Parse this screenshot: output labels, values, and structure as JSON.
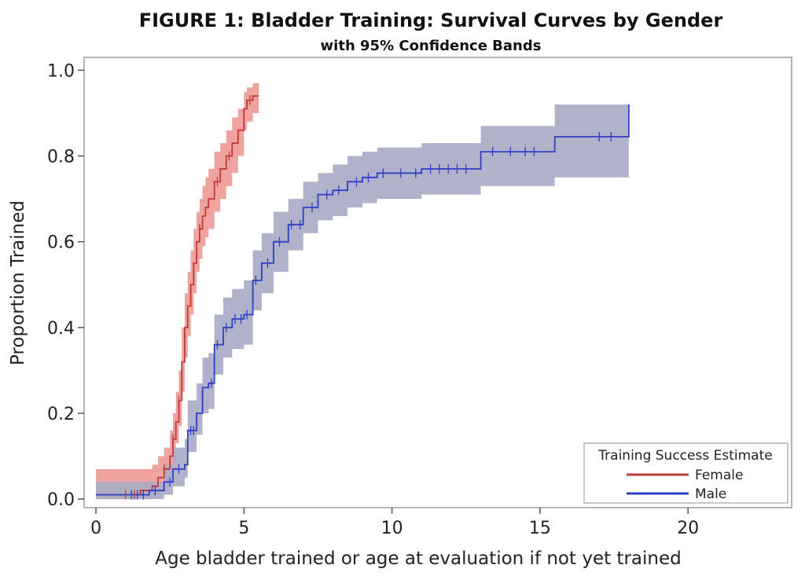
{
  "title_prefix": "FIGURE 1:",
  "title_rest": " Bladder Training: Survival Curves by Gender",
  "subtitle": "with 95% Confidence Bands",
  "colors": {
    "female_line": "#c0393b",
    "female_band": "#ec8f8a",
    "male_line": "#2f3fc4",
    "male_band": "#a8abc6",
    "frame": "#b4b4b4"
  },
  "chart_data": {
    "type": "line",
    "step": true,
    "title": "FIGURE 1: Bladder Training: Survival Curves by Gender",
    "subtitle": "with 95% Confidence Bands",
    "xlabel": "Age bladder trained or age at evaluation if not yet trained",
    "ylabel": "Proportion Trained",
    "xlim": [
      -0.4,
      23.5
    ],
    "ylim": [
      -0.02,
      1.03
    ],
    "x_ticks": [
      0,
      5,
      10,
      15,
      20
    ],
    "x_tick_labels": [
      "0",
      "5",
      "10",
      "15",
      "20"
    ],
    "y_ticks": [
      0.0,
      0.2,
      0.4,
      0.6,
      0.8,
      1.0
    ],
    "y_tick_labels": [
      "0.0",
      "0.2",
      "0.4",
      "0.6",
      "0.8",
      "1.0"
    ],
    "grid": false,
    "legend": {
      "title": "Training Success Estimate",
      "position": "bottom-right"
    },
    "series": [
      {
        "name": "Female",
        "color": "#c0393b",
        "band_color": "#ec8f8a",
        "x": [
          0,
          1.5,
          1.9,
          2.1,
          2.3,
          2.5,
          2.6,
          2.7,
          2.8,
          2.9,
          3.0,
          3.1,
          3.2,
          3.3,
          3.4,
          3.5,
          3.6,
          3.7,
          3.8,
          4.0,
          4.2,
          4.4,
          4.6,
          4.8,
          5.0,
          5.1,
          5.3,
          5.5
        ],
        "y": [
          0.01,
          0.02,
          0.03,
          0.05,
          0.07,
          0.1,
          0.14,
          0.18,
          0.23,
          0.32,
          0.4,
          0.45,
          0.5,
          0.55,
          0.6,
          0.63,
          0.66,
          0.68,
          0.7,
          0.74,
          0.77,
          0.8,
          0.83,
          0.86,
          0.91,
          0.93,
          0.94,
          0.94
        ],
        "lower": [
          0.0,
          0.0,
          0.01,
          0.02,
          0.04,
          0.06,
          0.09,
          0.13,
          0.17,
          0.25,
          0.33,
          0.38,
          0.43,
          0.48,
          0.53,
          0.56,
          0.59,
          0.61,
          0.63,
          0.67,
          0.7,
          0.73,
          0.76,
          0.8,
          0.86,
          0.88,
          0.9,
          0.91
        ],
        "upper": [
          0.07,
          0.07,
          0.08,
          0.1,
          0.12,
          0.16,
          0.2,
          0.25,
          0.3,
          0.4,
          0.48,
          0.53,
          0.58,
          0.63,
          0.67,
          0.7,
          0.73,
          0.75,
          0.77,
          0.81,
          0.83,
          0.86,
          0.89,
          0.91,
          0.95,
          0.96,
          0.97,
          0.97
        ],
        "censored": [
          1.0,
          1.3,
          2.3,
          2.6,
          2.8,
          3.5,
          4.1,
          4.5,
          5.2
        ]
      },
      {
        "name": "Male",
        "color": "#2f3fc4",
        "band_color": "#a8abc6",
        "x": [
          0,
          1.8,
          2.3,
          2.6,
          3.0,
          3.1,
          3.4,
          3.6,
          3.8,
          4.0,
          4.3,
          4.6,
          5.0,
          5.3,
          5.6,
          6.0,
          6.5,
          7.0,
          7.5,
          8.0,
          8.5,
          9.0,
          9.5,
          10.0,
          11.0,
          13.0,
          15.5,
          18.0
        ],
        "y": [
          0.01,
          0.02,
          0.04,
          0.07,
          0.08,
          0.16,
          0.2,
          0.26,
          0.27,
          0.36,
          0.4,
          0.42,
          0.43,
          0.51,
          0.55,
          0.6,
          0.64,
          0.68,
          0.71,
          0.72,
          0.74,
          0.75,
          0.76,
          0.76,
          0.77,
          0.81,
          0.845,
          0.92
        ],
        "lower": [
          0.0,
          0.0,
          0.01,
          0.03,
          0.05,
          0.11,
          0.15,
          0.2,
          0.21,
          0.29,
          0.33,
          0.35,
          0.36,
          0.44,
          0.48,
          0.53,
          0.58,
          0.62,
          0.65,
          0.66,
          0.68,
          0.69,
          0.7,
          0.7,
          0.71,
          0.73,
          0.75,
          0.75
        ],
        "upper": [
          0.04,
          0.04,
          0.08,
          0.12,
          0.14,
          0.23,
          0.27,
          0.33,
          0.34,
          0.43,
          0.47,
          0.49,
          0.51,
          0.58,
          0.62,
          0.67,
          0.7,
          0.74,
          0.76,
          0.78,
          0.8,
          0.81,
          0.82,
          0.82,
          0.83,
          0.87,
          0.92,
          0.92
        ],
        "censored": [
          1.2,
          1.4,
          1.6,
          2.0,
          2.5,
          2.8,
          3.2,
          3.3,
          3.9,
          4.1,
          4.4,
          4.7,
          4.9,
          5.1,
          5.4,
          5.8,
          6.2,
          6.6,
          6.9,
          7.3,
          7.8,
          8.2,
          8.8,
          9.2,
          9.7,
          10.3,
          10.8,
          11.3,
          11.6,
          11.9,
          12.2,
          12.5,
          13.4,
          14.0,
          14.5,
          14.8,
          17.0,
          17.4
        ]
      }
    ]
  }
}
